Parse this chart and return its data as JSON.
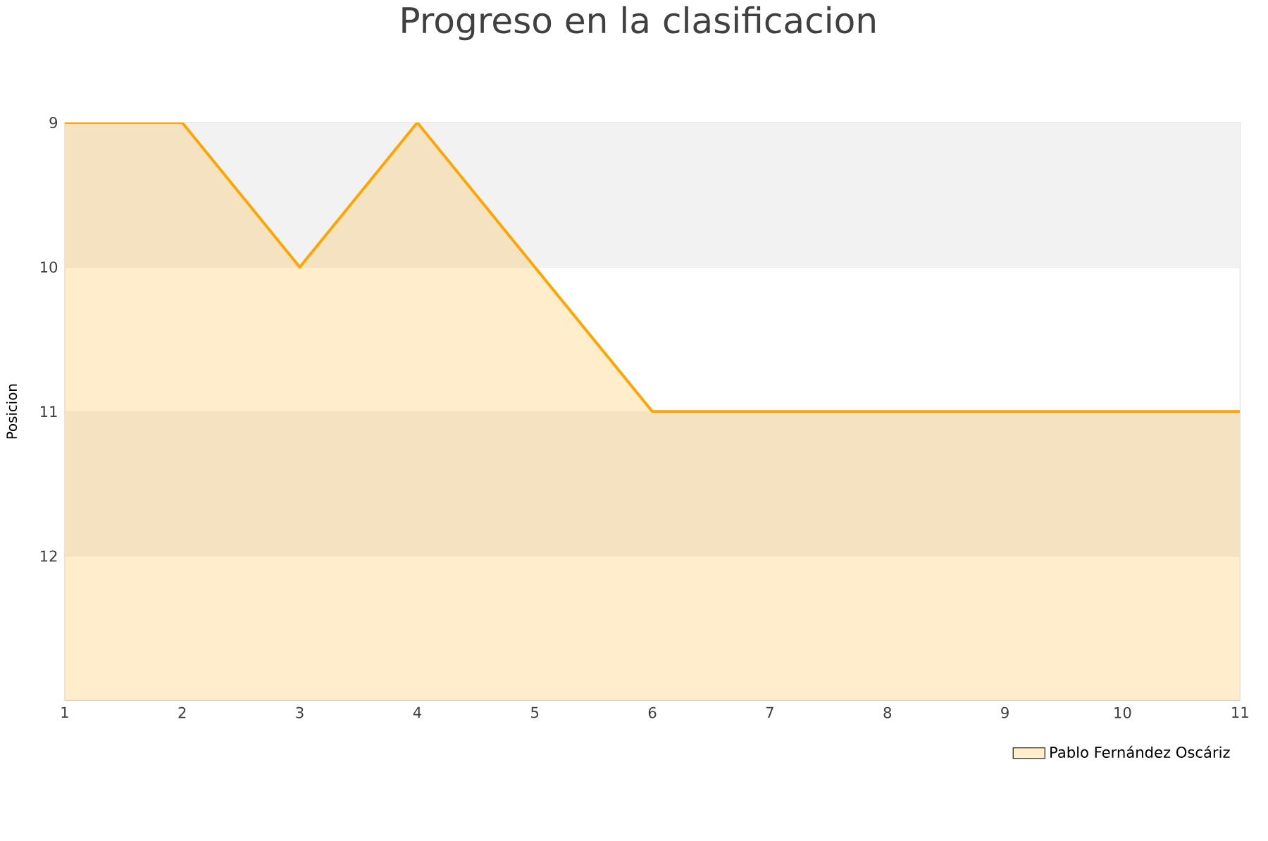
{
  "chart_data": {
    "type": "area",
    "title": "Progreso en la clasificacion",
    "ylabel": "Posicion",
    "x": [
      1,
      2,
      3,
      4,
      5,
      6,
      7,
      8,
      9,
      10,
      11
    ],
    "series": [
      {
        "name": "Pablo Fernández Oscáriz",
        "color": "#ffa500",
        "values": [
          9,
          9,
          10,
          9,
          10,
          11,
          11,
          11,
          11,
          11,
          11
        ]
      }
    ],
    "xlim": [
      1,
      11
    ],
    "xticks": [
      1,
      2,
      3,
      4,
      5,
      6,
      7,
      8,
      9,
      10,
      11
    ],
    "ylim": [
      13,
      9
    ],
    "yticks": [
      9,
      10,
      11,
      12
    ],
    "bands": [
      {
        "axis": "y",
        "from": 9,
        "to": 10,
        "color": "#f2f2f2"
      },
      {
        "axis": "y",
        "from": 11,
        "to": 12,
        "color": "#f2f2f2"
      }
    ],
    "grid": "y",
    "legend": "bottom right",
    "marker": "none"
  }
}
